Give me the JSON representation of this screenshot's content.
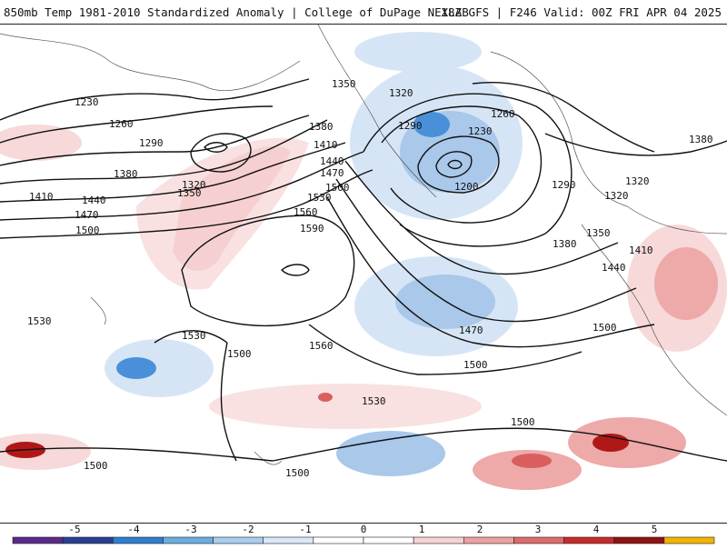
{
  "header": {
    "title_left": "850mb Temp 1981-2010 Standardized Anomaly | College of DuPage NEXLAB",
    "title_right": "18Z GFS | F246 Valid: 00Z FRI APR 04 2025"
  },
  "map": {
    "contour_labels": [
      "1230",
      "1260",
      "1290",
      "1320",
      "1350",
      "1380",
      "1410",
      "1440",
      "1470",
      "1500",
      "1530",
      "1560",
      "1590",
      "1350",
      "1320",
      "1380",
      "1410",
      "1440",
      "1470",
      "1500",
      "1530",
      "1560",
      "1290",
      "1230",
      "1260",
      "1200",
      "1290",
      "1320",
      "1350",
      "1380",
      "1410",
      "1440",
      "1470",
      "1500",
      "1500",
      "1500",
      "1530",
      "1530",
      "1500",
      "1500",
      "1500",
      "1320",
      "1380"
    ],
    "colors": {
      "neg_strong": "#1f5fb8",
      "neg_mid": "#4a90d9",
      "neg_light": "#a9c8ea",
      "neg_faint": "#d6e5f5",
      "pos_faint": "#f7d9d9",
      "pos_light": "#eea9a9",
      "pos_mid": "#d95f5f",
      "pos_strong": "#b01818"
    }
  },
  "colorbar": {
    "tick_labels": [
      "-5",
      "-4",
      "-3",
      "-2",
      "-1",
      "0",
      "1",
      "2",
      "3",
      "4",
      "5"
    ],
    "bins": [
      "#5a2a8a",
      "#2a3f8f",
      "#2f7fd0",
      "#6aaee0",
      "#a9cdee",
      "#d8e8f7",
      "#ffffff",
      "#ffffff",
      "#f6d3d3",
      "#eea0a0",
      "#de6a6a",
      "#c92a2a",
      "#8f1212",
      "#f2b400"
    ]
  }
}
